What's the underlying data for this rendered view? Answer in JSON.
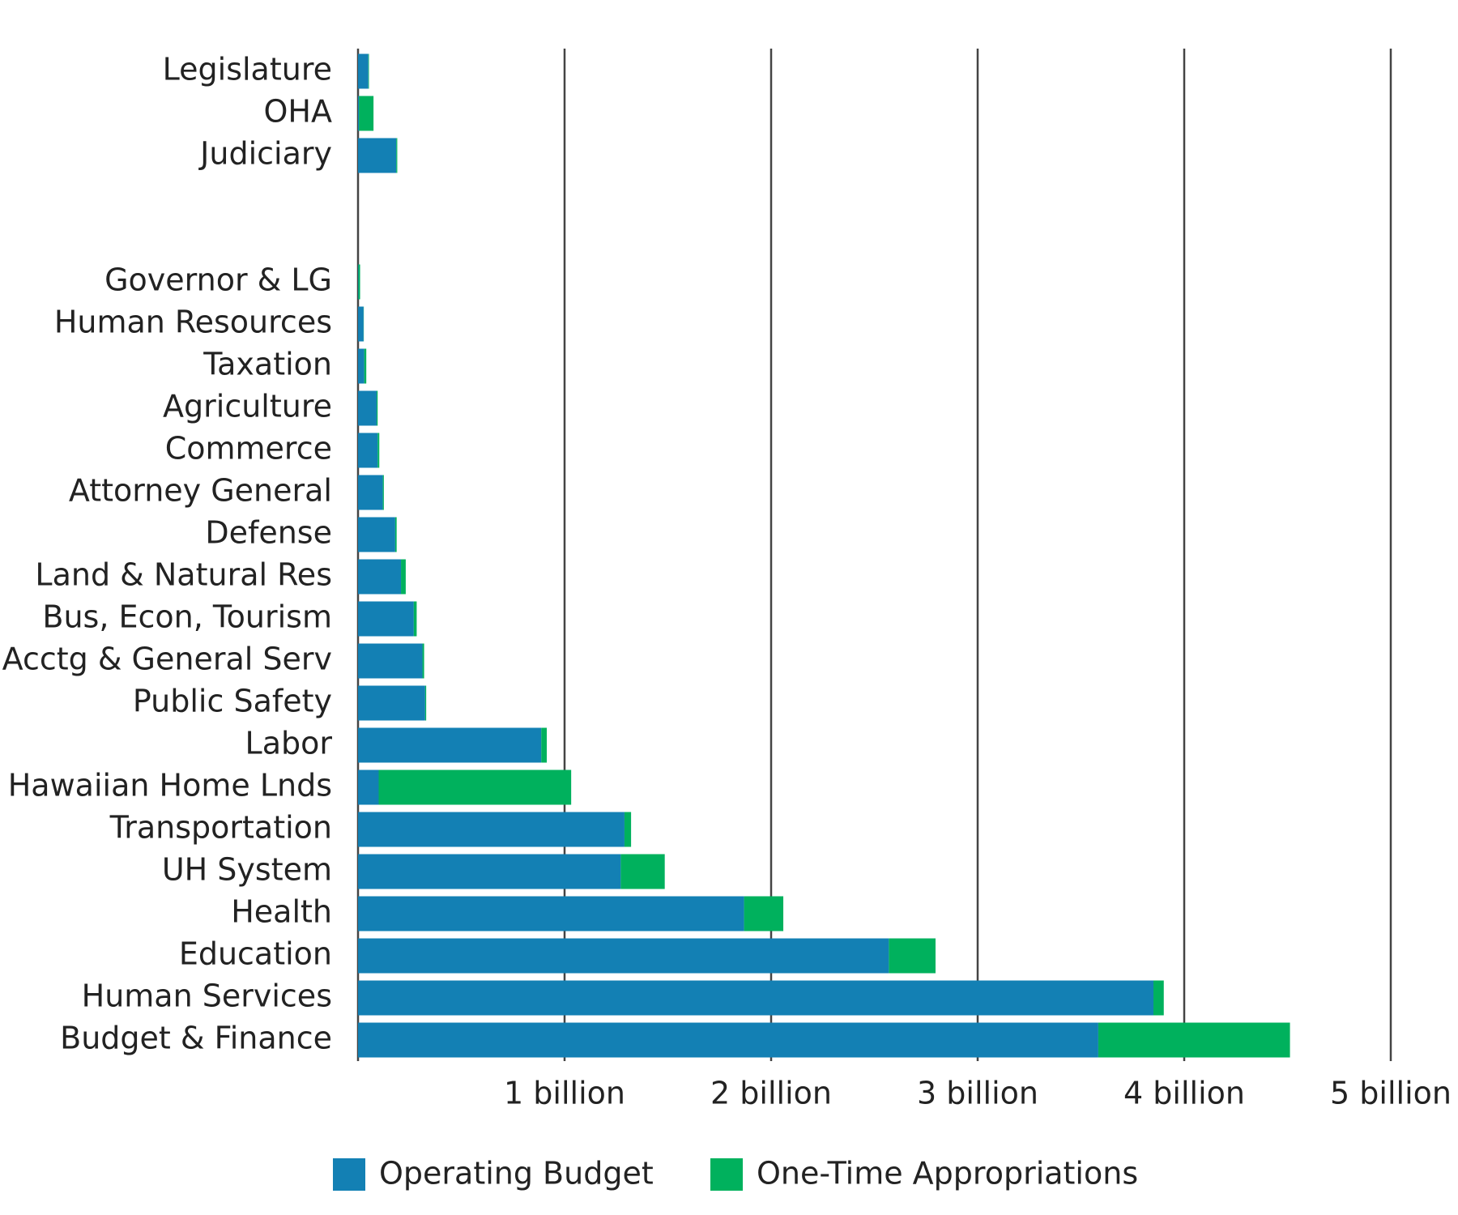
{
  "chart_data": {
    "type": "stacked-bar-horizontal",
    "categories": [
      "Legislature",
      "OHA",
      "Judiciary",
      null,
      null,
      "Governor & LG",
      "Human Resources",
      "Taxation",
      "Agriculture",
      "Commerce",
      "Attorney General",
      "Defense",
      "Land & Natural Res",
      "Bus, Econ, Tourism",
      "Acctg & General Serv",
      "Public Safety",
      "Labor",
      "Hawaiian Home Lnds",
      "Transportation",
      "UH System",
      "Health",
      "Education",
      "Human Services",
      "Budget & Finance"
    ],
    "series": [
      {
        "name": "Operating Budget",
        "color": "#1380b4",
        "values": [
          50000000,
          5000000,
          185000000,
          null,
          null,
          2000000,
          27000000,
          30000000,
          90000000,
          95000000,
          120000000,
          180000000,
          208000000,
          270000000,
          312000000,
          325000000,
          887000000,
          100000000,
          1290000000,
          1272000000,
          1869000000,
          2570000000,
          3851000000,
          3584000000
        ]
      },
      {
        "name": "One-Time Appropriations",
        "color": "#00b15d",
        "values": [
          3000000,
          70000000,
          5000000,
          null,
          null,
          8000000,
          1000000,
          10000000,
          5000000,
          8000000,
          5000000,
          7000000,
          23000000,
          14000000,
          8000000,
          5000000,
          27000000,
          932000000,
          32000000,
          213000000,
          190000000,
          226000000,
          50000000,
          928000000
        ]
      }
    ],
    "xlim": [
      0,
      5000000000
    ],
    "xticks": [
      {
        "value": 1000000000,
        "label": "1 billion"
      },
      {
        "value": 2000000000,
        "label": "2 billion"
      },
      {
        "value": 3000000000,
        "label": "3 billion"
      },
      {
        "value": 4000000000,
        "label": "4 billion"
      },
      {
        "value": 5000000000,
        "label": "5 billion"
      }
    ],
    "grid": true,
    "legend": "bottom"
  }
}
